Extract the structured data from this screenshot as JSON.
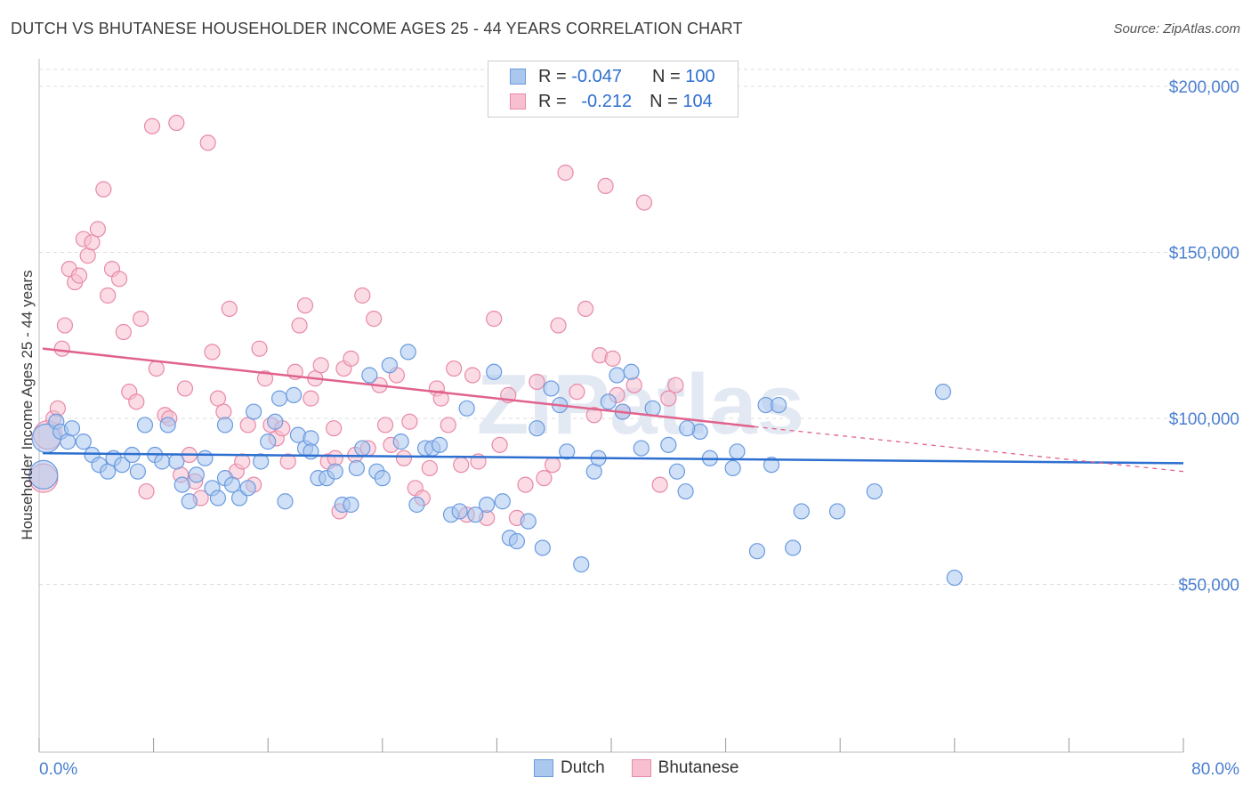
{
  "header": {
    "title": "DUTCH VS BHUTANESE HOUSEHOLDER INCOME AGES 25 - 44 YEARS CORRELATION CHART",
    "source": "Source: ZipAtlas.com"
  },
  "legend": {
    "r_label": "R =",
    "n_label": "N =",
    "rows": [
      {
        "r": "-0.047",
        "n": "100"
      },
      {
        "r": "-0.212",
        "n": "104"
      }
    ]
  },
  "bottom_legend": {
    "items": [
      {
        "label": "Dutch"
      },
      {
        "label": "Bhutanese"
      }
    ]
  },
  "watermark": "ZIPatlas",
  "colors": {
    "dutch_fill": "#aac7ee",
    "dutch_stroke": "#6a9be0",
    "dutch_line": "#2d6fd0",
    "bhutanese_fill": "#f7bfd0",
    "bhutanese_stroke": "#e889a8",
    "bhutanese_line": "#e0628d",
    "axis_text": "#4a7fd0",
    "grid": "#dddddd"
  },
  "chart_data": {
    "type": "scatter",
    "title": "DUTCH VS BHUTANESE HOUSEHOLDER INCOME AGES 25 - 44 YEARS CORRELATION CHART",
    "xlabel": "",
    "ylabel": "Householder Income Ages 25 - 44 years",
    "xlim": [
      0,
      80
    ],
    "ylim": [
      0,
      210000
    ],
    "x_tick_labels": [
      "0.0%",
      "80.0%"
    ],
    "y_ticks": [
      {
        "value": 50000,
        "label": "$50,000"
      },
      {
        "value": 100000,
        "label": "$100,000"
      },
      {
        "value": 150000,
        "label": "$150,000"
      },
      {
        "value": 200000,
        "label": "$200,000"
      }
    ],
    "grid": true,
    "legend_position": "top-center",
    "series": [
      {
        "name": "Dutch",
        "R": -0.047,
        "N": 100,
        "trend": {
          "x": [
            0,
            80
          ],
          "y": [
            89500,
            86500
          ]
        },
        "points": [
          [
            0.3,
            83000
          ],
          [
            0.5,
            94000
          ],
          [
            1.2,
            99000
          ],
          [
            1.5,
            96000
          ],
          [
            2.0,
            93000
          ],
          [
            2.3,
            97000
          ],
          [
            3.1,
            93000
          ],
          [
            3.7,
            89000
          ],
          [
            4.2,
            86000
          ],
          [
            4.8,
            84000
          ],
          [
            5.2,
            88000
          ],
          [
            5.8,
            86000
          ],
          [
            6.5,
            89000
          ],
          [
            6.9,
            84000
          ],
          [
            7.4,
            98000
          ],
          [
            8.1,
            89000
          ],
          [
            8.6,
            87000
          ],
          [
            9.0,
            98000
          ],
          [
            9.6,
            87000
          ],
          [
            10.0,
            80000
          ],
          [
            10.5,
            75000
          ],
          [
            11.0,
            83000
          ],
          [
            11.6,
            88000
          ],
          [
            12.1,
            79000
          ],
          [
            12.5,
            76000
          ],
          [
            13.0,
            82000
          ],
          [
            13.5,
            80000
          ],
          [
            14.0,
            76000
          ],
          [
            14.6,
            79000
          ],
          [
            15.0,
            102000
          ],
          [
            15.5,
            87000
          ],
          [
            16.0,
            93000
          ],
          [
            16.5,
            99000
          ],
          [
            16.8,
            106000
          ],
          [
            17.2,
            75000
          ],
          [
            17.8,
            107000
          ],
          [
            18.1,
            95000
          ],
          [
            18.6,
            91000
          ],
          [
            19.0,
            94000
          ],
          [
            19.5,
            82000
          ],
          [
            20.1,
            82000
          ],
          [
            20.7,
            84000
          ],
          [
            21.2,
            74000
          ],
          [
            21.8,
            74000
          ],
          [
            22.2,
            85000
          ],
          [
            22.6,
            91000
          ],
          [
            23.1,
            113000
          ],
          [
            23.6,
            84000
          ],
          [
            24.0,
            82000
          ],
          [
            24.5,
            116000
          ],
          [
            25.3,
            93000
          ],
          [
            25.8,
            120000
          ],
          [
            26.4,
            74000
          ],
          [
            27.0,
            91000
          ],
          [
            27.5,
            91000
          ],
          [
            28.0,
            92000
          ],
          [
            28.8,
            71000
          ],
          [
            29.4,
            72000
          ],
          [
            29.9,
            103000
          ],
          [
            30.5,
            71000
          ],
          [
            31.3,
            74000
          ],
          [
            31.8,
            114000
          ],
          [
            32.4,
            75000
          ],
          [
            32.9,
            64000
          ],
          [
            33.4,
            63000
          ],
          [
            34.2,
            69000
          ],
          [
            34.8,
            97000
          ],
          [
            35.2,
            61000
          ],
          [
            35.8,
            109000
          ],
          [
            36.4,
            104000
          ],
          [
            36.9,
            90000
          ],
          [
            37.9,
            56000
          ],
          [
            38.8,
            84000
          ],
          [
            39.1,
            88000
          ],
          [
            39.8,
            105000
          ],
          [
            40.4,
            113000
          ],
          [
            40.8,
            102000
          ],
          [
            41.4,
            114000
          ],
          [
            42.1,
            91000
          ],
          [
            42.9,
            103000
          ],
          [
            44.0,
            92000
          ],
          [
            44.6,
            84000
          ],
          [
            45.2,
            78000
          ],
          [
            46.2,
            96000
          ],
          [
            46.9,
            88000
          ],
          [
            48.5,
            85000
          ],
          [
            48.8,
            90000
          ],
          [
            50.2,
            60000
          ],
          [
            50.8,
            104000
          ],
          [
            51.2,
            86000
          ],
          [
            51.7,
            104000
          ],
          [
            52.7,
            61000
          ],
          [
            53.3,
            72000
          ],
          [
            55.8,
            72000
          ],
          [
            58.4,
            78000
          ],
          [
            63.2,
            108000
          ],
          [
            64.0,
            52000
          ],
          [
            45.3,
            97000
          ],
          [
            19.0,
            90000
          ],
          [
            13.0,
            98000
          ]
        ]
      },
      {
        "name": "Bhutanese",
        "R": -0.212,
        "N": 104,
        "trend": {
          "x": [
            0,
            50
          ],
          "y": [
            121000,
            97500
          ]
        },
        "trend_dashed": {
          "x": [
            50,
            80
          ],
          "y": [
            97500,
            84000
          ]
        },
        "points": [
          [
            0.3,
            82000
          ],
          [
            0.6,
            95000
          ],
          [
            1.0,
            100000
          ],
          [
            1.3,
            103000
          ],
          [
            1.6,
            121000
          ],
          [
            1.8,
            128000
          ],
          [
            2.1,
            145000
          ],
          [
            2.5,
            141000
          ],
          [
            2.8,
            143000
          ],
          [
            3.1,
            154000
          ],
          [
            3.4,
            149000
          ],
          [
            3.7,
            153000
          ],
          [
            4.1,
            157000
          ],
          [
            4.5,
            169000
          ],
          [
            4.8,
            137000
          ],
          [
            5.1,
            145000
          ],
          [
            5.6,
            142000
          ],
          [
            5.9,
            126000
          ],
          [
            6.3,
            108000
          ],
          [
            6.8,
            105000
          ],
          [
            7.1,
            130000
          ],
          [
            7.5,
            78000
          ],
          [
            7.9,
            188000
          ],
          [
            8.2,
            115000
          ],
          [
            8.8,
            101000
          ],
          [
            9.1,
            100000
          ],
          [
            9.6,
            189000
          ],
          [
            9.9,
            83000
          ],
          [
            10.2,
            109000
          ],
          [
            10.5,
            89000
          ],
          [
            10.9,
            81000
          ],
          [
            11.3,
            76000
          ],
          [
            11.8,
            183000
          ],
          [
            12.1,
            120000
          ],
          [
            12.5,
            106000
          ],
          [
            12.9,
            102000
          ],
          [
            13.3,
            133000
          ],
          [
            13.8,
            84000
          ],
          [
            14.2,
            87000
          ],
          [
            14.6,
            98000
          ],
          [
            15.0,
            80000
          ],
          [
            15.4,
            121000
          ],
          [
            15.8,
            112000
          ],
          [
            16.2,
            98000
          ],
          [
            16.6,
            94000
          ],
          [
            17.0,
            97000
          ],
          [
            17.4,
            87000
          ],
          [
            17.9,
            114000
          ],
          [
            18.2,
            128000
          ],
          [
            18.6,
            134000
          ],
          [
            19.0,
            106000
          ],
          [
            19.3,
            112000
          ],
          [
            19.7,
            116000
          ],
          [
            20.2,
            87000
          ],
          [
            20.6,
            97000
          ],
          [
            21.0,
            72000
          ],
          [
            21.3,
            115000
          ],
          [
            21.8,
            118000
          ],
          [
            22.1,
            89000
          ],
          [
            22.6,
            137000
          ],
          [
            23.0,
            91000
          ],
          [
            23.4,
            130000
          ],
          [
            23.8,
            110000
          ],
          [
            24.2,
            98000
          ],
          [
            24.6,
            92000
          ],
          [
            25.0,
            113000
          ],
          [
            25.5,
            88000
          ],
          [
            25.9,
            99000
          ],
          [
            26.3,
            79000
          ],
          [
            26.8,
            76000
          ],
          [
            27.3,
            85000
          ],
          [
            27.8,
            109000
          ],
          [
            28.1,
            106000
          ],
          [
            28.6,
            98000
          ],
          [
            29.0,
            115000
          ],
          [
            29.5,
            86000
          ],
          [
            29.9,
            71000
          ],
          [
            30.3,
            113000
          ],
          [
            30.7,
            87000
          ],
          [
            31.3,
            70000
          ],
          [
            31.8,
            130000
          ],
          [
            32.2,
            92000
          ],
          [
            32.8,
            107000
          ],
          [
            33.4,
            70000
          ],
          [
            34.0,
            80000
          ],
          [
            34.8,
            111000
          ],
          [
            35.3,
            82000
          ],
          [
            35.9,
            86000
          ],
          [
            36.3,
            128000
          ],
          [
            36.8,
            174000
          ],
          [
            37.6,
            108000
          ],
          [
            38.2,
            133000
          ],
          [
            38.8,
            101000
          ],
          [
            39.2,
            119000
          ],
          [
            39.6,
            170000
          ],
          [
            40.1,
            118000
          ],
          [
            40.4,
            107000
          ],
          [
            40.8,
            102000
          ],
          [
            41.6,
            110000
          ],
          [
            42.3,
            165000
          ],
          [
            43.4,
            80000
          ],
          [
            44.0,
            106000
          ],
          [
            44.5,
            110000
          ],
          [
            20.7,
            88000
          ]
        ]
      }
    ]
  }
}
